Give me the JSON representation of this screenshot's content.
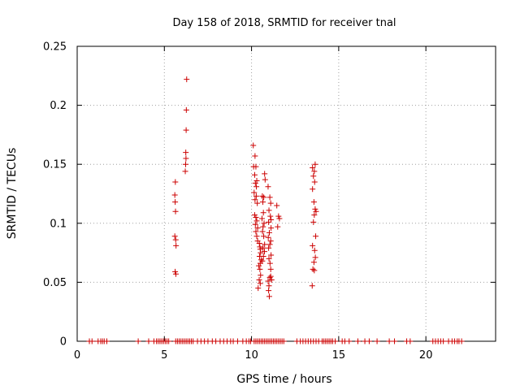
{
  "chart_data": {
    "type": "scatter",
    "title": "Day 158 of 2018, SRMTID for receiver tnal",
    "xlabel": "GPS time / hours",
    "ylabel": "SRMTID / TECUs",
    "xlim": [
      0,
      24
    ],
    "ylim": [
      0,
      0.25
    ],
    "xticks": [
      0,
      5,
      10,
      15,
      20
    ],
    "xtick_labels": [
      "0",
      "5",
      "10",
      "15",
      "20"
    ],
    "yticks": [
      0,
      0.05,
      0.1,
      0.15,
      0.2,
      0.25
    ],
    "ytick_labels": [
      "0",
      "0.05",
      "0.1",
      "0.15",
      "0.2",
      "0.25"
    ],
    "grid": true,
    "marker": "+",
    "color": "#cc0000",
    "series": [
      {
        "name": "SRMTID",
        "points": [
          [
            0.7,
            0
          ],
          [
            0.85,
            0
          ],
          [
            1.2,
            0
          ],
          [
            1.35,
            0
          ],
          [
            1.45,
            0
          ],
          [
            1.55,
            0
          ],
          [
            1.7,
            0
          ],
          [
            3.5,
            0
          ],
          [
            4.1,
            0
          ],
          [
            4.4,
            0
          ],
          [
            4.55,
            0
          ],
          [
            4.65,
            0
          ],
          [
            4.75,
            0
          ],
          [
            4.85,
            0
          ],
          [
            4.95,
            0
          ],
          [
            5.05,
            0
          ],
          [
            5.15,
            0
          ],
          [
            5.25,
            0
          ],
          [
            5.65,
            0
          ],
          [
            5.75,
            0
          ],
          [
            5.85,
            0
          ],
          [
            5.95,
            0
          ],
          [
            6.05,
            0
          ],
          [
            6.15,
            0
          ],
          [
            6.25,
            0
          ],
          [
            6.35,
            0
          ],
          [
            6.45,
            0
          ],
          [
            6.55,
            0
          ],
          [
            6.65,
            0
          ],
          [
            6.9,
            0
          ],
          [
            7.1,
            0
          ],
          [
            7.3,
            0
          ],
          [
            7.5,
            0
          ],
          [
            7.75,
            0
          ],
          [
            7.95,
            0
          ],
          [
            8.2,
            0
          ],
          [
            8.4,
            0
          ],
          [
            8.6,
            0
          ],
          [
            8.8,
            0
          ],
          [
            8.95,
            0
          ],
          [
            9.2,
            0
          ],
          [
            9.5,
            0
          ],
          [
            9.7,
            0
          ],
          [
            9.85,
            0
          ],
          [
            9.95,
            0
          ],
          [
            10.15,
            0
          ],
          [
            10.25,
            0
          ],
          [
            10.35,
            0
          ],
          [
            10.45,
            0
          ],
          [
            10.55,
            0
          ],
          [
            10.65,
            0
          ],
          [
            10.75,
            0
          ],
          [
            10.85,
            0
          ],
          [
            10.95,
            0
          ],
          [
            11.05,
            0
          ],
          [
            11.15,
            0
          ],
          [
            11.25,
            0
          ],
          [
            11.35,
            0
          ],
          [
            11.45,
            0
          ],
          [
            11.55,
            0
          ],
          [
            11.65,
            0
          ],
          [
            11.75,
            0
          ],
          [
            11.85,
            0
          ],
          [
            12.6,
            0
          ],
          [
            12.8,
            0
          ],
          [
            12.95,
            0
          ],
          [
            13.1,
            0
          ],
          [
            13.25,
            0
          ],
          [
            13.4,
            0
          ],
          [
            13.55,
            0
          ],
          [
            13.7,
            0
          ],
          [
            13.85,
            0
          ],
          [
            14.05,
            0
          ],
          [
            14.15,
            0
          ],
          [
            14.25,
            0
          ],
          [
            14.35,
            0
          ],
          [
            14.45,
            0
          ],
          [
            14.55,
            0
          ],
          [
            14.65,
            0
          ],
          [
            14.8,
            0
          ],
          [
            15.2,
            0
          ],
          [
            15.35,
            0
          ],
          [
            15.6,
            0
          ],
          [
            16.1,
            0
          ],
          [
            16.5,
            0
          ],
          [
            16.75,
            0
          ],
          [
            17.2,
            0
          ],
          [
            17.9,
            0
          ],
          [
            18.2,
            0
          ],
          [
            18.9,
            0
          ],
          [
            19.1,
            0
          ],
          [
            20.4,
            0
          ],
          [
            20.55,
            0
          ],
          [
            20.7,
            0
          ],
          [
            20.85,
            0
          ],
          [
            21.0,
            0
          ],
          [
            21.3,
            0
          ],
          [
            21.5,
            0
          ],
          [
            21.65,
            0
          ],
          [
            21.8,
            0
          ],
          [
            21.9,
            0
          ],
          [
            22.05,
            0
          ],
          [
            5.6,
            0.124
          ],
          [
            5.62,
            0.118
          ],
          [
            5.63,
            0.135
          ],
          [
            5.64,
            0.11
          ],
          [
            5.6,
            0.089
          ],
          [
            5.65,
            0.086
          ],
          [
            5.67,
            0.081
          ],
          [
            5.62,
            0.059
          ],
          [
            5.66,
            0.057
          ],
          [
            6.2,
            0.144
          ],
          [
            6.22,
            0.15
          ],
          [
            6.24,
            0.155
          ],
          [
            6.23,
            0.16
          ],
          [
            6.25,
            0.179
          ],
          [
            6.26,
            0.196
          ],
          [
            6.28,
            0.222
          ],
          [
            10.1,
            0.166
          ],
          [
            10.2,
            0.157
          ],
          [
            10.12,
            0.148
          ],
          [
            10.25,
            0.148
          ],
          [
            10.18,
            0.141
          ],
          [
            10.3,
            0.136
          ],
          [
            10.22,
            0.134
          ],
          [
            10.28,
            0.131
          ],
          [
            10.15,
            0.126
          ],
          [
            10.27,
            0.123
          ],
          [
            10.2,
            0.12
          ],
          [
            10.33,
            0.117
          ],
          [
            10.18,
            0.107
          ],
          [
            10.25,
            0.105
          ],
          [
            10.3,
            0.102
          ],
          [
            10.22,
            0.099
          ],
          [
            10.35,
            0.096
          ],
          [
            10.25,
            0.093
          ],
          [
            10.3,
            0.089
          ],
          [
            10.35,
            0.085
          ],
          [
            10.45,
            0.083
          ],
          [
            10.48,
            0.08
          ],
          [
            10.5,
            0.078
          ],
          [
            10.52,
            0.075
          ],
          [
            10.46,
            0.072
          ],
          [
            10.55,
            0.069
          ],
          [
            10.5,
            0.066
          ],
          [
            10.42,
            0.064
          ],
          [
            10.48,
            0.061
          ],
          [
            10.52,
            0.056
          ],
          [
            10.44,
            0.052
          ],
          [
            10.5,
            0.049
          ],
          [
            10.38,
            0.045
          ],
          [
            10.62,
            0.123
          ],
          [
            10.7,
            0.122
          ],
          [
            10.65,
            0.118
          ],
          [
            10.68,
            0.109
          ],
          [
            10.6,
            0.104
          ],
          [
            10.72,
            0.1
          ],
          [
            10.66,
            0.097
          ],
          [
            10.63,
            0.093
          ],
          [
            10.7,
            0.089
          ],
          [
            10.75,
            0.082
          ],
          [
            10.66,
            0.079
          ],
          [
            10.74,
            0.076
          ],
          [
            10.68,
            0.072
          ],
          [
            10.62,
            0.068
          ],
          [
            10.75,
            0.142
          ],
          [
            10.78,
            0.137
          ],
          [
            10.95,
            0.131
          ],
          [
            11.05,
            0.122
          ],
          [
            11.1,
            0.117
          ],
          [
            11.0,
            0.111
          ],
          [
            11.08,
            0.106
          ],
          [
            10.98,
            0.101
          ],
          [
            11.12,
            0.096
          ],
          [
            11.02,
            0.092
          ],
          [
            10.96,
            0.088
          ],
          [
            11.1,
            0.085
          ],
          [
            11.05,
            0.082
          ],
          [
            10.98,
            0.079
          ],
          [
            11.12,
            0.073
          ],
          [
            11.0,
            0.07
          ],
          [
            11.06,
            0.066
          ],
          [
            11.1,
            0.061
          ],
          [
            11.05,
            0.054
          ],
          [
            10.95,
            0.051
          ],
          [
            11.0,
            0.047
          ],
          [
            10.98,
            0.043
          ],
          [
            11.02,
            0.038
          ],
          [
            11.12,
            0.103
          ],
          [
            11.1,
            0.055
          ],
          [
            11.15,
            0.052
          ],
          [
            11.45,
            0.115
          ],
          [
            11.55,
            0.106
          ],
          [
            11.6,
            0.104
          ],
          [
            11.5,
            0.097
          ],
          [
            13.5,
            0.147
          ],
          [
            13.6,
            0.144
          ],
          [
            13.55,
            0.14
          ],
          [
            13.62,
            0.135
          ],
          [
            13.5,
            0.129
          ],
          [
            13.58,
            0.118
          ],
          [
            13.65,
            0.112
          ],
          [
            13.6,
            0.107
          ],
          [
            13.55,
            0.101
          ],
          [
            13.68,
            0.089
          ],
          [
            13.5,
            0.081
          ],
          [
            13.62,
            0.077
          ],
          [
            13.66,
            0.071
          ],
          [
            13.58,
            0.067
          ],
          [
            13.52,
            0.061
          ],
          [
            13.6,
            0.06
          ],
          [
            13.48,
            0.047
          ],
          [
            13.65,
            0.15
          ],
          [
            13.7,
            0.11
          ]
        ]
      }
    ]
  }
}
